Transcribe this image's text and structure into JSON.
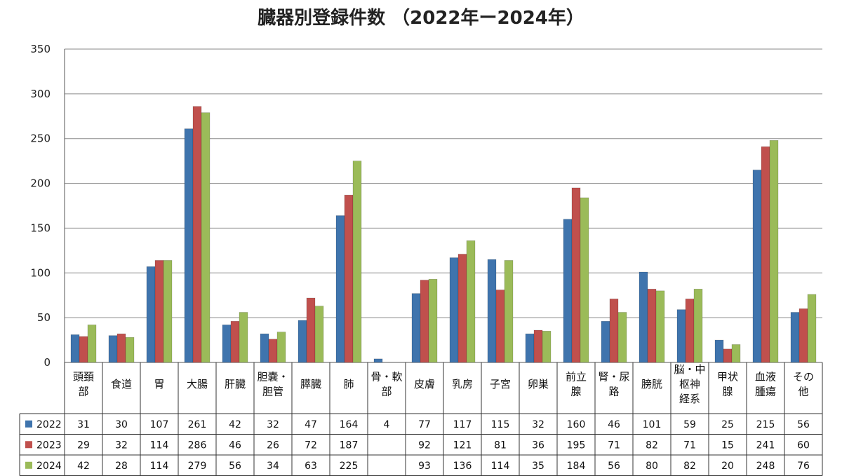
{
  "chart_data": {
    "type": "bar",
    "title": "臓器別登録件数 （2022年ー2024年）",
    "ylim": [
      0,
      350
    ],
    "yticks": [
      0,
      50,
      100,
      150,
      200,
      250,
      300,
      350
    ],
    "grid": true,
    "legend_placement": "left of data table",
    "categories": [
      [
        "頭頚",
        "部"
      ],
      [
        "食道"
      ],
      [
        "胃"
      ],
      [
        "大腸"
      ],
      [
        "肝臓"
      ],
      [
        "胆嚢・",
        "胆管"
      ],
      [
        "膵臓"
      ],
      [
        "肺"
      ],
      [
        "骨・軟",
        "部"
      ],
      [
        "皮膚"
      ],
      [
        "乳房"
      ],
      [
        "子宮"
      ],
      [
        "卵巣"
      ],
      [
        "前立",
        "腺"
      ],
      [
        "腎・尿",
        "路"
      ],
      [
        "膀胱"
      ],
      [
        "脳・中",
        "枢神",
        "経系"
      ],
      [
        "甲状",
        "腺"
      ],
      [
        "血液",
        "腫瘍"
      ],
      [
        "その",
        "他"
      ]
    ],
    "series": [
      {
        "name": "2022",
        "color": "#3f74ad",
        "values": [
          31,
          30,
          107,
          261,
          42,
          32,
          47,
          164,
          4,
          77,
          117,
          115,
          32,
          160,
          46,
          101,
          59,
          25,
          215,
          56
        ]
      },
      {
        "name": "2023",
        "color": "#c0504d",
        "values": [
          29,
          32,
          114,
          286,
          46,
          26,
          72,
          187,
          null,
          92,
          121,
          81,
          36,
          195,
          71,
          82,
          71,
          15,
          241,
          60
        ]
      },
      {
        "name": "2024",
        "color": "#9bbb59",
        "values": [
          42,
          28,
          114,
          279,
          56,
          34,
          63,
          225,
          null,
          93,
          136,
          114,
          35,
          184,
          56,
          80,
          82,
          20,
          248,
          76
        ]
      }
    ]
  }
}
